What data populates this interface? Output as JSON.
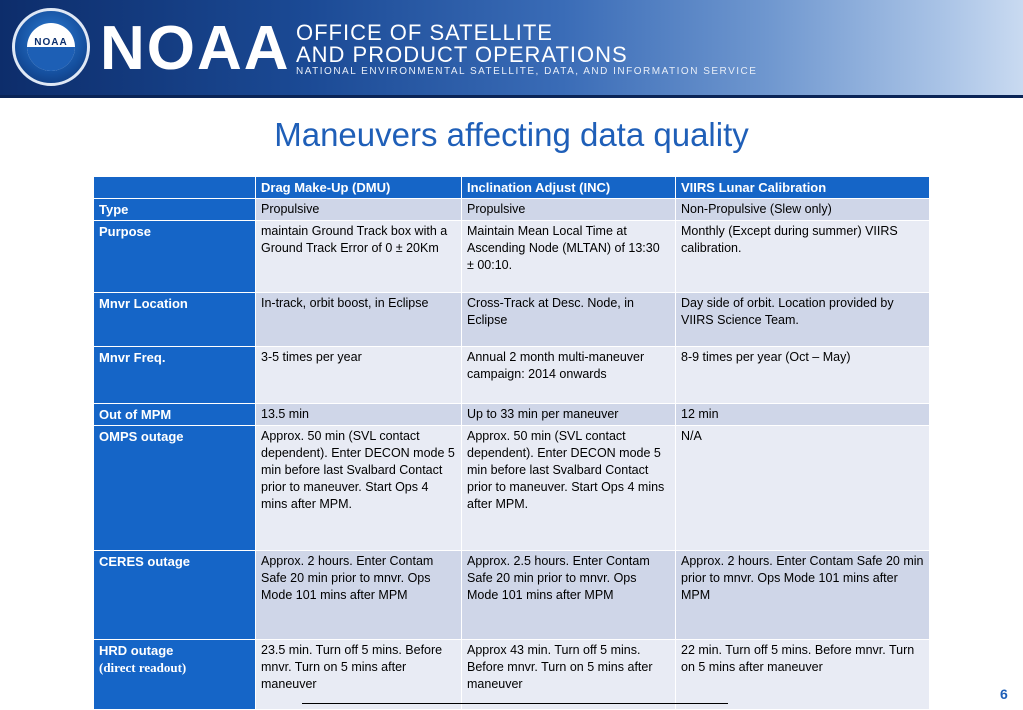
{
  "header": {
    "brand": "NOAA",
    "office_line1": "OFFICE OF SATELLITE",
    "office_line2": "AND PRODUCT OPERATIONS",
    "service": "NATIONAL ENVIRONMENTAL SATELLITE, DATA, AND INFORMATION SERVICE",
    "logo_text": "NOAA"
  },
  "title": "Maneuvers affecting data quality",
  "table": {
    "columns": [
      "",
      "Drag Make-Up (DMU)",
      "Inclination Adjust (INC)",
      "VIIRS Lunar Calibration"
    ],
    "rows": [
      {
        "label": "Type",
        "cells": [
          "Propulsive",
          "Propulsive",
          "Non-Propulsive (Slew only)"
        ]
      },
      {
        "label": "Purpose",
        "cells": [
          "maintain Ground Track box with a Ground Track Error of 0 ± 20Km",
          "Maintain Mean Local Time at Ascending Node (MLTAN) of 13:30 ± 00:10.",
          "Monthly (Except during summer) VIIRS calibration."
        ]
      },
      {
        "label": "Mnvr Location",
        "cells": [
          "In-track, orbit boost, in Eclipse",
          "Cross-Track at Desc. Node, in Eclipse",
          "Day side of orbit. Location provided by VIIRS Science Team."
        ]
      },
      {
        "label": "Mnvr Freq.",
        "cells": [
          "3-5 times per year",
          "Annual 2 month multi-maneuver campaign: 2014 onwards",
          "8-9 times per year (Oct – May)"
        ]
      },
      {
        "label": "Out of MPM",
        "cells": [
          "13.5 min",
          "Up to 33 min per maneuver",
          "12 min"
        ]
      },
      {
        "label": "OMPS outage",
        "cells": [
          "Approx. 50 min (SVL contact dependent). Enter DECON mode 5 min before last Svalbard Contact prior to maneuver. Start Ops 4 mins after MPM.",
          "Approx. 50 min (SVL contact dependent). Enter DECON mode 5 min before last Svalbard Contact prior to maneuver. Start Ops 4 mins after MPM.",
          "N/A"
        ]
      },
      {
        "label": "CERES outage",
        "cells": [
          "Approx. 2 hours. Enter Contam Safe 20 min prior to mnvr. Ops Mode 101 mins after MPM",
          "Approx. 2.5 hours. Enter Contam Safe 20 min prior to mnvr. Ops Mode 101 mins after MPM",
          "Approx. 2 hours. Enter Contam Safe 20 min prior to mnvr. Ops Mode 101 mins after MPM"
        ]
      },
      {
        "label": "HRD outage",
        "sublabel": "(direct readout)",
        "cells": [
          "23.5 min. Turn off 5 mins. Before mnvr. Turn on 5 mins after maneuver",
          "Approx 43 min. Turn off 5 mins. Before mnvr. Turn on 5 mins after maneuver",
          "22 min. Turn off 5 mins. Before mnvr. Turn on 5 mins after maneuver"
        ]
      }
    ]
  },
  "page_number": "6"
}
